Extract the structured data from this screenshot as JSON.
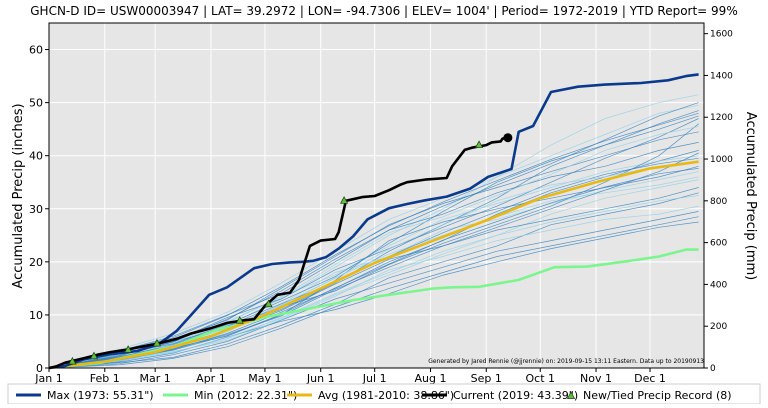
{
  "chart_data": {
    "type": "line",
    "title": "GHCN-D ID= USW00003947 | LAT= 39.2972 | LON= -94.7306 | ELEV= 1004' | Period= 1972-2019 |  YTD Report= 99%",
    "ylabel": "Accumulated Precip (inches)",
    "y2label": "Accumulated Precip (mm)",
    "xlabel": "",
    "x_axis": "day of year",
    "xlim": [
      1,
      365
    ],
    "ylim": [
      0,
      65
    ],
    "y2lim": [
      0,
      1651
    ],
    "grid": true,
    "log_scale": false,
    "legend_position": "bottom",
    "xtick_positions": [
      1,
      32,
      60,
      91,
      121,
      152,
      182,
      213,
      244,
      274,
      305,
      335
    ],
    "xtick_labels": [
      "Jan 1",
      "Feb 1",
      "Mar 1",
      "Apr 1",
      "May 1",
      "Jun 1",
      "Jul 1",
      "Aug 1",
      "Sep 1",
      "Oct 1",
      "Nov 1",
      "Dec 1"
    ],
    "yticks": [
      0,
      10,
      20,
      30,
      40,
      50,
      60
    ],
    "y2ticks": [
      0,
      200,
      400,
      600,
      800,
      1000,
      1200,
      1400,
      1600
    ],
    "annotation": "Generated by Jared Rennie (@jjrennie) on: 2019-09-15 13:11 Eastern. Data up to 20190913",
    "colors": {
      "max": "#0b3a8c",
      "min": "#7cf58f",
      "avg": "#e8b816",
      "current": "#000000",
      "record_marker": "#5fbf3f",
      "history": "#2f7fbf",
      "plot_background": "#e6e6e6",
      "grid": "#ffffff"
    },
    "series": [
      {
        "name": "Max (1973:  55.31\")",
        "role": "max",
        "x": [
          1,
          10,
          20,
          35,
          50,
          62,
          72,
          80,
          90,
          100,
          110,
          115,
          125,
          135,
          142,
          148,
          155,
          162,
          170,
          178,
          190,
          200,
          210,
          222,
          235,
          245,
          258,
          262,
          270,
          280,
          295,
          310,
          330,
          345,
          355,
          362
        ],
        "y": [
          0,
          0.4,
          1.6,
          2.6,
          3.2,
          4.5,
          7.0,
          10.0,
          13.8,
          15.2,
          17.6,
          18.8,
          19.6,
          19.9,
          20.0,
          20.2,
          20.9,
          22.5,
          24.8,
          28.0,
          30.1,
          30.9,
          31.6,
          32.3,
          33.8,
          36.0,
          37.5,
          44.5,
          45.6,
          52.0,
          53.0,
          53.4,
          53.7,
          54.2,
          55.0,
          55.31
        ]
      },
      {
        "name": "Min (2012:  22.31\")",
        "role": "min",
        "x": [
          1,
          30,
          50,
          70,
          85,
          95,
          105,
          120,
          135,
          150,
          170,
          190,
          205,
          215,
          225,
          240,
          262,
          282,
          300,
          320,
          340,
          355,
          362
        ],
        "y": [
          0,
          1.0,
          2.5,
          4.0,
          6.0,
          7.3,
          8.0,
          9.5,
          10.5,
          11.5,
          12.8,
          13.8,
          14.5,
          15.0,
          15.2,
          15.3,
          16.6,
          19.0,
          19.1,
          20.0,
          21.0,
          22.3,
          22.31
        ]
      },
      {
        "name": "Avg (1981-2010:  38.86\")",
        "role": "avg",
        "x": [
          1,
          32,
          60,
          91,
          121,
          152,
          182,
          213,
          244,
          274,
          305,
          335,
          362
        ],
        "y": [
          0,
          1.2,
          3.0,
          6.0,
          10.0,
          15.0,
          19.8,
          23.8,
          27.8,
          32.0,
          35.0,
          37.6,
          38.86
        ]
      },
      {
        "name": "Current (2019:  43.39\")",
        "role": "current",
        "x": [
          1,
          5,
          10,
          20,
          28,
          35,
          45,
          52,
          60,
          72,
          80,
          91,
          100,
          110,
          115,
          121,
          128,
          135,
          140,
          146,
          152,
          160,
          162,
          166,
          170,
          175,
          182,
          190,
          196,
          200,
          210,
          222,
          225,
          232,
          236,
          244,
          247,
          252,
          253,
          256
        ],
        "y": [
          0,
          0.3,
          1.0,
          1.8,
          2.5,
          3.0,
          3.5,
          4.0,
          4.5,
          5.5,
          6.5,
          7.5,
          8.5,
          9.0,
          9.2,
          11.7,
          13.8,
          14.2,
          16.6,
          23.0,
          24.0,
          24.3,
          25.6,
          31.5,
          31.8,
          32.2,
          32.4,
          33.5,
          34.5,
          35.0,
          35.5,
          35.8,
          38.0,
          41.1,
          41.5,
          42.0,
          42.5,
          42.7,
          43.2,
          43.39
        ]
      }
    ],
    "record_markers": [
      {
        "x": 26,
        "y": 2.2
      },
      {
        "x": 61,
        "y": 4.6
      },
      {
        "x": 107,
        "y": 8.9
      },
      {
        "x": 123,
        "y": 12.0
      },
      {
        "x": 165,
        "y": 31.5
      },
      {
        "x": 240,
        "y": 42.0
      },
      {
        "x": 14,
        "y": 1.2
      },
      {
        "x": 45,
        "y": 3.4
      }
    ],
    "record_label": "New/Tied Precip Record (8)",
    "history_lines": [
      {
        "x": [
          1,
          40,
          70,
          100,
          130,
          160,
          190,
          220,
          250,
          280,
          310,
          340,
          362
        ],
        "y": [
          0,
          2.0,
          4.5,
          8.0,
          13.0,
          19.0,
          25.0,
          30.0,
          36.0,
          42.0,
          47.0,
          50.0,
          51.5
        ]
      },
      {
        "x": [
          1,
          40,
          70,
          100,
          130,
          160,
          190,
          220,
          250,
          280,
          310,
          340,
          362
        ],
        "y": [
          0,
          3.0,
          5.0,
          7.5,
          11.0,
          16.0,
          22.0,
          27.0,
          32.0,
          38.0,
          42.0,
          46.0,
          48.5
        ]
      },
      {
        "x": [
          1,
          40,
          70,
          100,
          130,
          160,
          190,
          220,
          250,
          280,
          310,
          340,
          362
        ],
        "y": [
          0,
          1.5,
          3.5,
          6.5,
          10.5,
          15.0,
          20.0,
          24.0,
          29.0,
          33.0,
          36.0,
          39.0,
          41.0
        ]
      },
      {
        "x": [
          1,
          40,
          70,
          100,
          130,
          160,
          190,
          220,
          250,
          280,
          310,
          340,
          362
        ],
        "y": [
          0,
          2.5,
          4.0,
          7.0,
          12.0,
          18.0,
          21.0,
          26.0,
          28.0,
          31.0,
          33.5,
          35.5,
          37.0
        ]
      },
      {
        "x": [
          1,
          40,
          70,
          100,
          130,
          160,
          190,
          220,
          250,
          280,
          310,
          340,
          362
        ],
        "y": [
          0,
          1.0,
          2.0,
          4.5,
          8.0,
          12.0,
          17.0,
          20.0,
          23.0,
          27.0,
          29.0,
          31.0,
          33.0
        ]
      },
      {
        "x": [
          1,
          40,
          70,
          100,
          130,
          160,
          190,
          220,
          250,
          280,
          310,
          340,
          362
        ],
        "y": [
          0,
          2.2,
          5.5,
          9.0,
          15.0,
          21.0,
          27.0,
          31.0,
          34.0,
          37.0,
          40.0,
          43.0,
          44.5
        ]
      },
      {
        "x": [
          1,
          40,
          70,
          100,
          130,
          160,
          190,
          220,
          250,
          280,
          310,
          340,
          362
        ],
        "y": [
          0,
          1.8,
          3.0,
          5.5,
          9.5,
          14.0,
          18.0,
          22.0,
          25.0,
          29.0,
          32.0,
          34.0,
          35.5
        ]
      },
      {
        "x": [
          1,
          40,
          70,
          100,
          130,
          160,
          190,
          220,
          250,
          280,
          310,
          340,
          362
        ],
        "y": [
          0,
          3.2,
          6.0,
          10.0,
          14.0,
          20.0,
          26.0,
          29.0,
          33.0,
          36.0,
          38.0,
          41.0,
          42.5
        ]
      },
      {
        "x": [
          1,
          40,
          70,
          100,
          130,
          160,
          190,
          220,
          250,
          280,
          310,
          340,
          362
        ],
        "y": [
          0,
          0.8,
          2.5,
          5.0,
          9.0,
          13.0,
          16.0,
          19.0,
          22.0,
          24.0,
          26.0,
          28.0,
          29.5
        ]
      },
      {
        "x": [
          1,
          40,
          70,
          100,
          130,
          160,
          190,
          220,
          250,
          280,
          310,
          340,
          362
        ],
        "y": [
          0,
          2.8,
          4.8,
          8.5,
          13.5,
          17.5,
          23.0,
          28.0,
          31.0,
          34.0,
          37.0,
          39.0,
          40.0
        ]
      },
      {
        "x": [
          1,
          40,
          70,
          100,
          130,
          160,
          190,
          220,
          250,
          280,
          310,
          340,
          362
        ],
        "y": [
          0,
          1.2,
          3.8,
          6.0,
          10.0,
          16.5,
          24.0,
          27.5,
          30.0,
          32.0,
          34.0,
          36.0,
          38.0
        ]
      },
      {
        "x": [
          1,
          40,
          70,
          100,
          130,
          160,
          190,
          220,
          250,
          280,
          310,
          340,
          362
        ],
        "y": [
          0,
          2.0,
          4.2,
          7.8,
          11.5,
          14.5,
          19.5,
          23.5,
          27.0,
          30.5,
          35.0,
          40.0,
          46.0
        ]
      },
      {
        "x": [
          1,
          40,
          70,
          100,
          130,
          160,
          190,
          220,
          250,
          280,
          310,
          340,
          362
        ],
        "y": [
          0,
          1.6,
          3.3,
          6.8,
          11.8,
          17.0,
          21.5,
          25.0,
          28.5,
          31.5,
          33.0,
          34.5,
          36.0
        ]
      },
      {
        "x": [
          1,
          40,
          70,
          100,
          130,
          160,
          190,
          220,
          250,
          280,
          310,
          340,
          362
        ],
        "y": [
          0,
          2.4,
          5.0,
          9.5,
          13.0,
          18.5,
          22.5,
          26.5,
          30.5,
          35.0,
          39.5,
          43.5,
          47.0
        ]
      },
      {
        "x": [
          1,
          40,
          70,
          100,
          130,
          160,
          190,
          220,
          250,
          280,
          310,
          340,
          362
        ],
        "y": [
          0,
          1.1,
          2.8,
          5.8,
          8.8,
          11.0,
          14.0,
          17.5,
          20.0,
          22.5,
          24.5,
          26.5,
          27.5
        ]
      },
      {
        "x": [
          1,
          40,
          70,
          100,
          130,
          160,
          190,
          220,
          250,
          280,
          310,
          340,
          362
        ],
        "y": [
          0,
          3.5,
          6.5,
          10.5,
          16.0,
          22.0,
          28.0,
          32.0,
          36.0,
          40.0,
          44.0,
          48.0,
          49.5
        ]
      },
      {
        "x": [
          1,
          40,
          70,
          100,
          130,
          160,
          190,
          220,
          250,
          280,
          310,
          340,
          362
        ],
        "y": [
          0,
          1.9,
          4.1,
          7.1,
          10.8,
          15.8,
          20.5,
          23.0,
          26.0,
          28.0,
          30.0,
          32.0,
          34.0
        ]
      },
      {
        "x": [
          1,
          40,
          70,
          100,
          130,
          160,
          190,
          220,
          250,
          280,
          310,
          340,
          362
        ],
        "y": [
          0,
          2.6,
          4.6,
          8.2,
          12.6,
          17.2,
          23.5,
          29.5,
          35.0,
          39.0,
          42.0,
          45.0,
          47.5
        ]
      },
      {
        "x": [
          1,
          40,
          70,
          100,
          130,
          160,
          190,
          220,
          250,
          280,
          310,
          340,
          362
        ],
        "y": [
          0,
          1.4,
          3.1,
          5.2,
          9.1,
          13.5,
          18.5,
          21.0,
          24.0,
          26.0,
          28.0,
          29.0,
          30.5
        ]
      },
      {
        "x": [
          1,
          40,
          70,
          100,
          130,
          160,
          190,
          220,
          250,
          280,
          310,
          340,
          362
        ],
        "y": [
          0,
          2.1,
          4.4,
          7.9,
          12.1,
          16.1,
          21.0,
          25.5,
          29.5,
          33.5,
          36.5,
          38.5,
          39.5
        ]
      },
      {
        "x": [
          1,
          40,
          70,
          100,
          130,
          160,
          190,
          220,
          250,
          280,
          310,
          340,
          362
        ],
        "y": [
          0,
          1.7,
          3.6,
          6.3,
          9.8,
          14.8,
          19.0,
          23.0,
          26.5,
          30.0,
          33.5,
          37.0,
          40.5
        ]
      },
      {
        "x": [
          1,
          40,
          70,
          100,
          130,
          160,
          190,
          220,
          250,
          280,
          310,
          340,
          362
        ],
        "y": [
          0,
          2.9,
          5.3,
          8.7,
          13.3,
          19.5,
          25.5,
          28.5,
          32.5,
          36.5,
          41.0,
          44.0,
          45.5
        ]
      },
      {
        "x": [
          1,
          40,
          70,
          100,
          130,
          160,
          190,
          220,
          250,
          280,
          310,
          340,
          362
        ],
        "y": [
          0,
          0.6,
          1.8,
          4.0,
          7.5,
          11.5,
          15.0,
          18.0,
          21.0,
          23.0,
          25.0,
          27.0,
          28.5
        ]
      },
      {
        "x": [
          1,
          40,
          70,
          100,
          130,
          160,
          190,
          220,
          250,
          280,
          310,
          340,
          362
        ],
        "y": [
          0,
          2.3,
          4.9,
          9.2,
          14.5,
          20.5,
          26.0,
          30.5,
          34.5,
          38.5,
          43.0,
          47.5,
          50.0
        ]
      },
      {
        "x": [
          1,
          40,
          70,
          100,
          130,
          160,
          190,
          220,
          250,
          280,
          310,
          340,
          362
        ],
        "y": [
          0,
          1.3,
          2.9,
          5.7,
          9.3,
          13.8,
          17.5,
          21.5,
          25.0,
          27.5,
          29.5,
          31.5,
          32.5
        ]
      },
      {
        "x": [
          1,
          40,
          70,
          100,
          130,
          160,
          190,
          220,
          250,
          280,
          310,
          340,
          362
        ],
        "y": [
          0,
          3.1,
          5.7,
          9.9,
          15.3,
          21.3,
          26.8,
          31.3,
          35.3,
          39.3,
          42.8,
          45.8,
          48.0
        ]
      },
      {
        "x": [
          1,
          40,
          70,
          100,
          130,
          160,
          190,
          220,
          250,
          280,
          310,
          340,
          362
        ],
        "y": [
          0,
          1.5,
          3.4,
          6.1,
          10.1,
          15.1,
          19.6,
          24.1,
          27.6,
          31.1,
          34.1,
          36.6,
          37.6
        ]
      },
      {
        "x": [
          1,
          40,
          70,
          100,
          130,
          160,
          190,
          220,
          250,
          280,
          310,
          340,
          362
        ],
        "y": [
          0,
          2.7,
          4.3,
          7.4,
          11.9,
          16.9,
          22.4,
          27.0,
          31.5,
          34.5,
          36.0,
          38.0,
          39.0
        ]
      }
    ]
  }
}
